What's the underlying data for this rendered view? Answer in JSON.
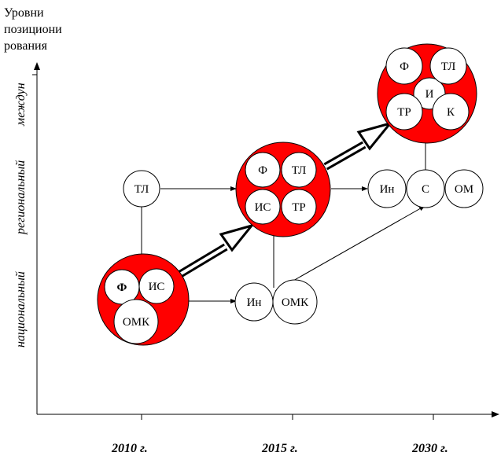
{
  "y_title": [
    "Уровни",
    "позициони",
    "рования"
  ],
  "levels": {
    "international": "междун",
    "regional": "региональный",
    "national": "национальный"
  },
  "years": [
    "2010 г.",
    "2015 г.",
    "2030 г."
  ],
  "nodes": {
    "c2010": {
      "f": "Ф",
      "is": "ИС",
      "omk": "ОМК"
    },
    "tl2010": "ТЛ",
    "c2015": {
      "f": "Ф",
      "tl": "ТЛ",
      "is": "ИС",
      "tr": "ТР"
    },
    "in2015": "Ин",
    "omk2015": "ОМК",
    "c2030": {
      "f": "Ф",
      "tl": "ТЛ",
      "i": "И",
      "tr": "ТР",
      "k": "К"
    },
    "in2030": "Ин",
    "s2030": "С",
    "om2030": "ОМ"
  },
  "colors": {
    "cluster": "#ff0000",
    "line": "#000000",
    "node_fill": "#ffffff"
  }
}
